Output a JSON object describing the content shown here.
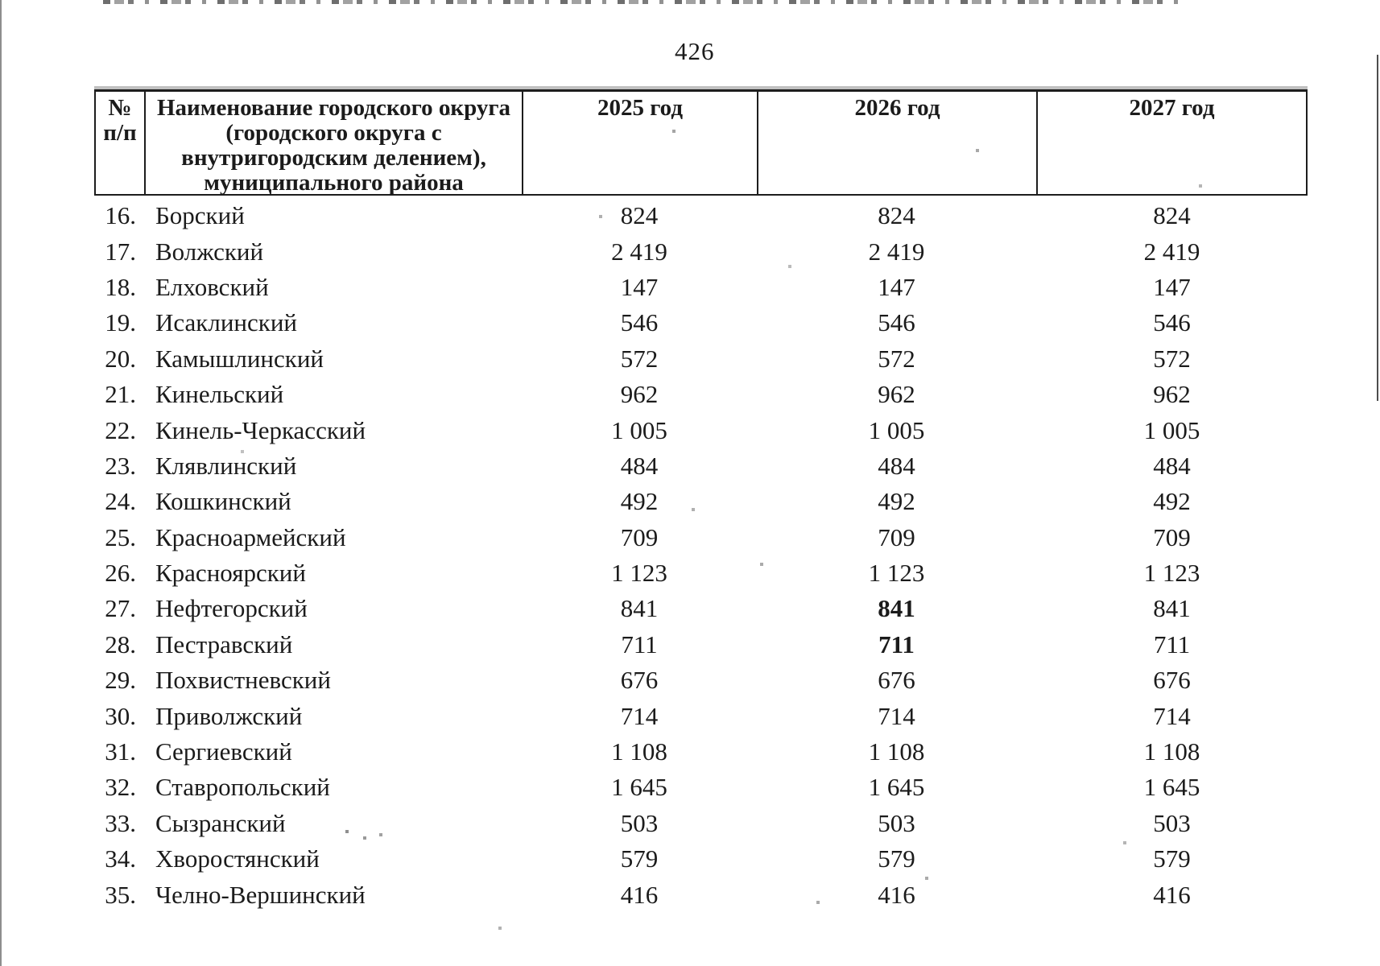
{
  "page": {
    "number": "426"
  },
  "table": {
    "header": {
      "num_line1": "№",
      "num_line2": "п/п",
      "name_lines": [
        "Наименование городского округа",
        "(городского округа с",
        "внутригородским делением),",
        "муниципального района"
      ],
      "years": [
        "2025 год",
        "2026 год",
        "2027 год"
      ]
    },
    "rows": [
      {
        "num": "16.",
        "name": "Борский",
        "y2025": "824",
        "y2026": "824",
        "y2027": "824",
        "bold_2026": false
      },
      {
        "num": "17.",
        "name": "Волжский",
        "y2025": "2 419",
        "y2026": "2 419",
        "y2027": "2 419",
        "bold_2026": false
      },
      {
        "num": "18.",
        "name": "Елховский",
        "y2025": "147",
        "y2026": "147",
        "y2027": "147",
        "bold_2026": false
      },
      {
        "num": "19.",
        "name": "Исаклинский",
        "y2025": "546",
        "y2026": "546",
        "y2027": "546",
        "bold_2026": false
      },
      {
        "num": "20.",
        "name": "Камышлинский",
        "y2025": "572",
        "y2026": "572",
        "y2027": "572",
        "bold_2026": false
      },
      {
        "num": "21.",
        "name": "Кинельский",
        "y2025": "962",
        "y2026": "962",
        "y2027": "962",
        "bold_2026": false
      },
      {
        "num": "22.",
        "name": "Кинель-Черкасский",
        "y2025": "1 005",
        "y2026": "1 005",
        "y2027": "1 005",
        "bold_2026": false
      },
      {
        "num": "23.",
        "name": "Клявлинский",
        "y2025": "484",
        "y2026": "484",
        "y2027": "484",
        "bold_2026": false
      },
      {
        "num": "24.",
        "name": "Кошкинский",
        "y2025": "492",
        "y2026": "492",
        "y2027": "492",
        "bold_2026": false
      },
      {
        "num": "25.",
        "name": "Красноармейский",
        "y2025": "709",
        "y2026": "709",
        "y2027": "709",
        "bold_2026": false
      },
      {
        "num": "26.",
        "name": "Красноярский",
        "y2025": "1 123",
        "y2026": "1 123",
        "y2027": "1 123",
        "bold_2026": false
      },
      {
        "num": "27.",
        "name": "Нефтегорский",
        "y2025": "841",
        "y2026": "841",
        "y2027": "841",
        "bold_2026": true
      },
      {
        "num": "28.",
        "name": "Пестравский",
        "y2025": "711",
        "y2026": "711",
        "y2027": "711",
        "bold_2026": true
      },
      {
        "num": "29.",
        "name": "Похвистневский",
        "y2025": "676",
        "y2026": "676",
        "y2027": "676",
        "bold_2026": false
      },
      {
        "num": "30.",
        "name": "Приволжский",
        "y2025": "714",
        "y2026": "714",
        "y2027": "714",
        "bold_2026": false
      },
      {
        "num": "31.",
        "name": "Сергиевский",
        "y2025": "1 108",
        "y2026": "1 108",
        "y2027": "1 108",
        "bold_2026": false
      },
      {
        "num": "32.",
        "name": "Ставропольский",
        "y2025": "1 645",
        "y2026": "1 645",
        "y2027": "1 645",
        "bold_2026": false
      },
      {
        "num": "33.",
        "name": "Сызранский",
        "y2025": "503",
        "y2026": "503",
        "y2027": "503",
        "bold_2026": false
      },
      {
        "num": "34.",
        "name": "Хворостянский",
        "y2025": "579",
        "y2026": "579",
        "y2027": "579",
        "bold_2026": false
      },
      {
        "num": "35.",
        "name": "Челно-Вершинский",
        "y2025": "416",
        "y2026": "416",
        "y2027": "416",
        "bold_2026": false
      }
    ]
  }
}
